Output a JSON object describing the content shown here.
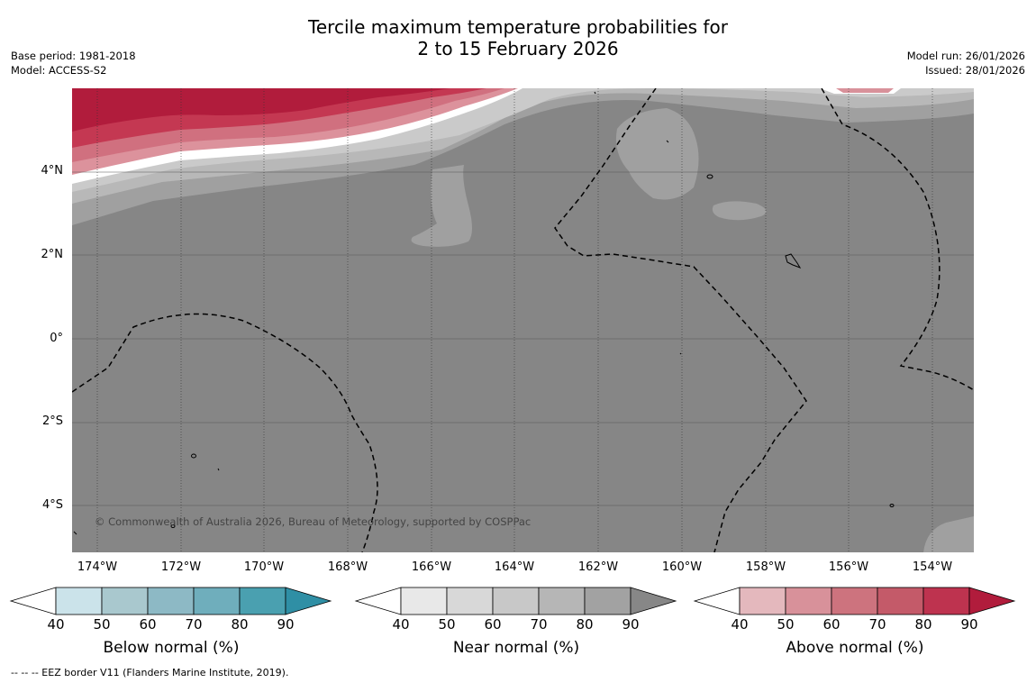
{
  "title": {
    "line1": "Tercile maximum temperature probabilities for",
    "line2": "2 to 15 February 2026"
  },
  "meta": {
    "base_period": "Base period: 1981-2018",
    "model": "Model: ACCESS-S2",
    "model_run": "Model run: 26/01/2026",
    "issued": "Issued: 28/01/2026"
  },
  "map": {
    "lat_labels": [
      "4°N",
      "2°N",
      "0°",
      "2°S",
      "4°S"
    ],
    "lon_labels": [
      "174°W",
      "172°W",
      "170°W",
      "168°W",
      "166°W",
      "164°W",
      "162°W",
      "160°W",
      "158°W",
      "156°W",
      "154°W"
    ],
    "copyright": "© Commonwealth of Australia 2026, Bureau of Meteorology, supported by COSPPac",
    "colors": {
      "background_near_90": "#868686",
      "near_80": "#a0a0a0",
      "near_70": "#b8b8b8",
      "near_60": "#cacaca",
      "above_90": "#b11c3c",
      "above_80": "#c43852",
      "above_70": "#d0707f",
      "above_60": "#dc929c"
    }
  },
  "colorbars": [
    {
      "title": "Below normal (%)",
      "ticks": [
        "40",
        "50",
        "60",
        "70",
        "80",
        "90"
      ],
      "colors": [
        "#ffffff",
        "#cbe3ea",
        "#a9c8ce",
        "#8db9c5",
        "#6faebc",
        "#4aa0b0",
        "#2f8fa5"
      ]
    },
    {
      "title": "Near normal (%)",
      "ticks": [
        "40",
        "50",
        "60",
        "70",
        "80",
        "90"
      ],
      "colors": [
        "#ffffff",
        "#e8e8e8",
        "#d8d8d8",
        "#c8c8c8",
        "#b6b6b6",
        "#a2a2a2",
        "#878787"
      ]
    },
    {
      "title": "Above normal (%)",
      "ticks": [
        "40",
        "50",
        "60",
        "70",
        "80",
        "90"
      ],
      "colors": [
        "#ffffff",
        "#e4b8bd",
        "#d8919a",
        "#cd737e",
        "#c45a69",
        "#be334f",
        "#b11c3c"
      ]
    }
  ],
  "footer": "--  --  -- EEZ border V11 (Flanders Marine Institute, 2019)."
}
